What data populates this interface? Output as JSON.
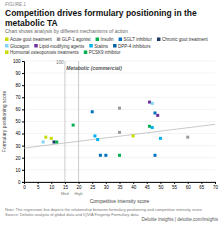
{
  "chart_data": {
    "type": "scatter",
    "title": "Competition drives formulary positioning in the metabolic TA",
    "subtitle": "Chart shows analysis by different mechanisms of action",
    "figure_label": "FIGURE 1",
    "x_label": "Competitive intensity score",
    "y_label": "Formulary positioning score",
    "annotation": {
      "text": "Metabolic (commercial)",
      "x": 15.5,
      "y": 96
    },
    "top_label": {
      "text": "100",
      "x": 14.5,
      "y": 100
    },
    "xlim": [
      0,
      70
    ],
    "ylim": [
      0,
      100
    ],
    "xticks": [
      0,
      5,
      10,
      15,
      20,
      25,
      30,
      35,
      40,
      45,
      50,
      55,
      60,
      65,
      70
    ],
    "yticks": [
      0,
      10,
      20,
      30,
      40,
      50,
      60,
      70,
      80,
      90,
      100
    ],
    "grid": true,
    "x": [
      7,
      8,
      10,
      11,
      12,
      18,
      25,
      26,
      27,
      28,
      30,
      35,
      35,
      40,
      35,
      46,
      47,
      48,
      49,
      46,
      47,
      50,
      48,
      60
    ],
    "y": [
      33,
      37,
      36,
      33,
      33,
      47,
      58,
      38,
      35,
      22,
      22,
      61,
      41,
      38,
      22,
      66,
      65,
      57,
      55,
      46,
      45,
      36,
      22,
      37
    ],
    "colors": [
      "#7fd7f5",
      "#c8dc00",
      "#c8dc00",
      "#1f3864",
      "#00b050",
      "#00b050",
      "#0070c0",
      "#00b0f0",
      "#00b0f0",
      "#0070c0",
      "#0070c0",
      "#9b9b9b",
      "#9b9b9b",
      "#c8dc00",
      "#00b050",
      "#7030a0",
      "#7fd7f5",
      "#0070c0",
      "#7030a0",
      "#00b050",
      "#00b0f0",
      "#00b0f0",
      "#0070c0",
      "#9b9b9b"
    ],
    "regression": {
      "x": [
        0,
        70
      ],
      "values": [
        28,
        47.6
      ]
    },
    "vlines": [
      {
        "x": 15,
        "label": "Med"
      },
      {
        "x": 20,
        "label": "High"
      }
    ],
    "legend_rows": [
      [
        {
          "label": "Acute gout treatment",
          "color": "#c8dc00"
        },
        {
          "label": "GLP-1 agonist",
          "color": "#9b9b9b"
        },
        {
          "label": "Insulin",
          "color": "#00b050"
        },
        {
          "label": "SGLT inhibitor",
          "color": "#0070c0"
        },
        {
          "label": "Chronic gout treatment",
          "color": "#1f3864"
        }
      ],
      [
        {
          "label": "Glucagon",
          "color": "#7fd7f5"
        },
        {
          "label": "Lipid-modifying agents",
          "color": "#7030a0"
        },
        {
          "label": "Statins",
          "color": "#00b0f0"
        },
        {
          "label": "DPP-4 inhibitors",
          "color": "#005fa3"
        }
      ],
      [
        {
          "label": "Hormonal osteoporosis treatments",
          "color": "#c8dc00"
        },
        {
          "label": "PCSK9 inhibitor",
          "color": "#00b050"
        }
      ]
    ],
    "notes": [
      "Note: The regression line depicts the relationship between formulary positioning and competitive intensity score.",
      "Source: Deloitte analysis of global data and IQVIA Fingertip Formulary data."
    ],
    "branding": "Deloitte Insights | deloitte.com/insights"
  }
}
